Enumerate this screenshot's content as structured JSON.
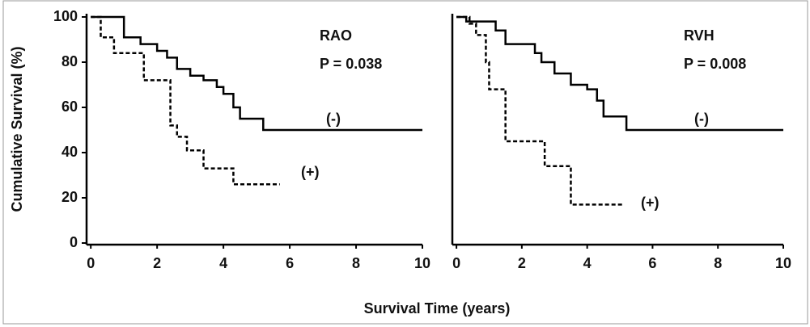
{
  "ylabel": "Cumulative Survival (%)",
  "xlabel": "Survival Time (years)",
  "chart_data": [
    {
      "type": "line",
      "step": true,
      "title": "RAO",
      "annotation": "P = 0.038",
      "xlim": [
        -0.2,
        10
      ],
      "xticks": [
        0,
        2,
        4,
        6,
        8,
        10
      ],
      "ylim": [
        0,
        100
      ],
      "yticks": [
        0,
        20,
        40,
        60,
        80,
        100
      ],
      "series": [
        {
          "name": "(-)",
          "color": "#000000",
          "dashed": false,
          "x": [
            0,
            1.0,
            1.5,
            2.0,
            2.3,
            2.6,
            3.0,
            3.4,
            3.8,
            4.0,
            4.3,
            4.5,
            5.2,
            10
          ],
          "values": [
            100,
            91,
            88,
            85,
            82,
            77,
            74,
            72,
            69,
            66,
            60,
            55,
            50,
            50
          ]
        },
        {
          "name": "(+)",
          "color": "#000000",
          "dashed": true,
          "x": [
            0,
            0.3,
            0.7,
            1.6,
            2.4,
            2.6,
            2.9,
            3.4,
            4.3,
            5.7
          ],
          "values": [
            100,
            91,
            84,
            72,
            52,
            47,
            41,
            33,
            26,
            26
          ]
        }
      ]
    },
    {
      "type": "line",
      "step": true,
      "title": "RVH",
      "annotation": "P = 0.008",
      "xlim": [
        -0.2,
        10
      ],
      "xticks": [
        0,
        2,
        4,
        6,
        8,
        10
      ],
      "ylim": [
        0,
        100
      ],
      "series": [
        {
          "name": "(-)",
          "color": "#000000",
          "dashed": false,
          "x": [
            0,
            0.3,
            1.2,
            1.5,
            2.4,
            2.6,
            3.0,
            3.5,
            4.0,
            4.3,
            4.5,
            5.2,
            10
          ],
          "values": [
            100,
            98,
            94,
            88,
            84,
            80,
            75,
            70,
            68,
            63,
            56,
            50,
            50
          ]
        },
        {
          "name": "(+)",
          "color": "#000000",
          "dashed": true,
          "x": [
            0,
            0.4,
            0.6,
            0.9,
            1.0,
            1.5,
            2.7,
            3.5,
            5.1
          ],
          "values": [
            100,
            97,
            92,
            80,
            68,
            45,
            34,
            17,
            17
          ]
        }
      ]
    }
  ]
}
